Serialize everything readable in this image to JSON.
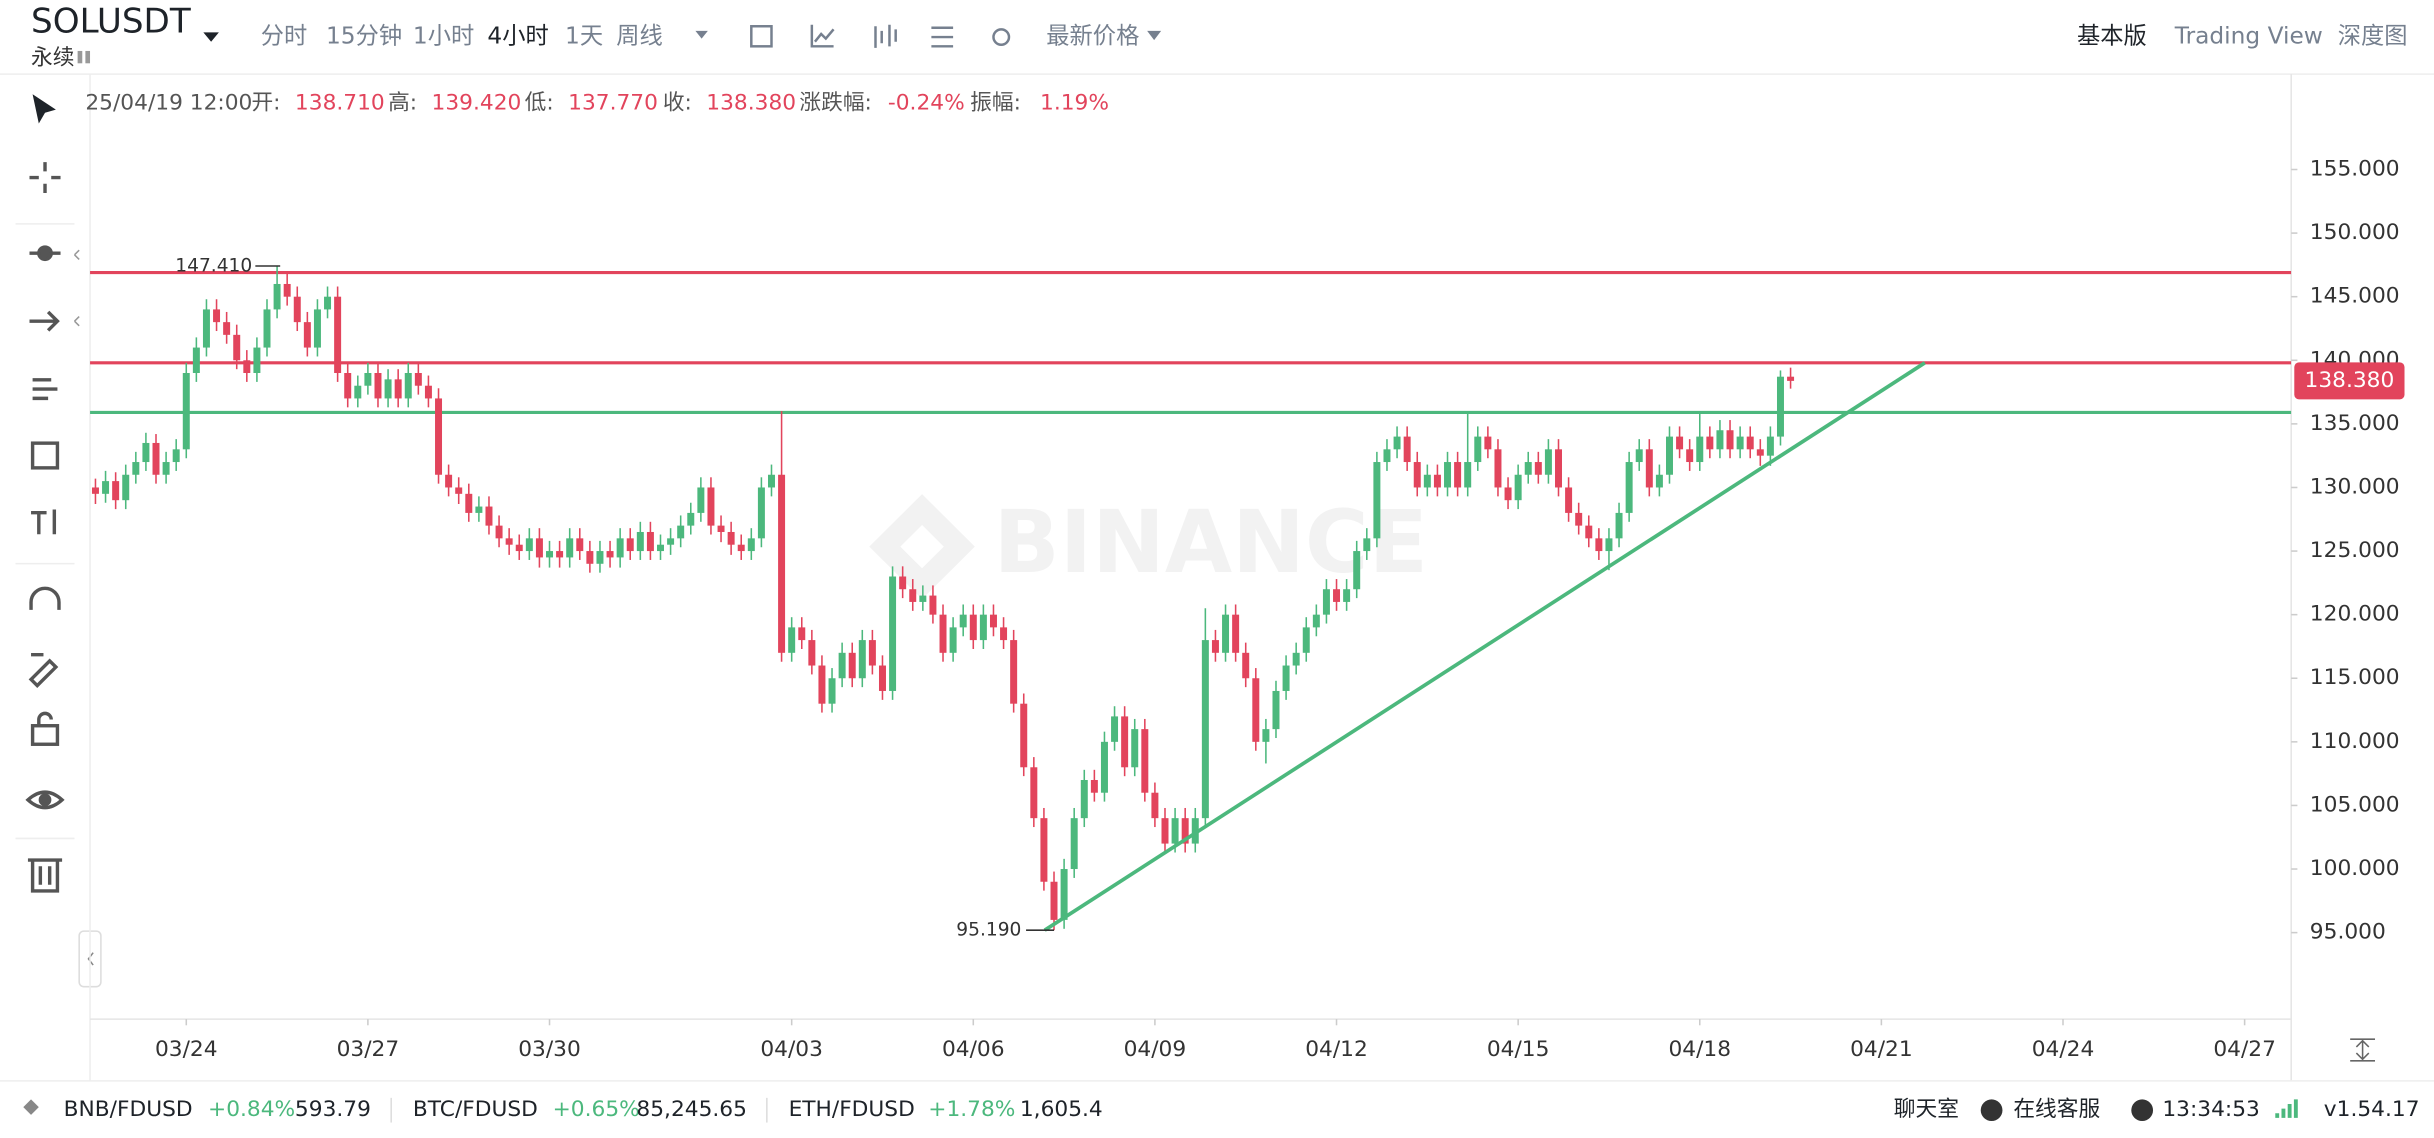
{
  "header": {
    "symbol": "SOLUSDT",
    "contract": "永续",
    "intervals": [
      "分时",
      "15分钟",
      "1小时",
      "4小时",
      "1天",
      "周线"
    ],
    "price_type": "最新价格",
    "views": [
      "基本版",
      "Trading View",
      "深度图"
    ]
  },
  "info_bar": {
    "time": "25/04/19 12:00",
    "items": [
      {
        "label": "开:",
        "value": "138.710"
      },
      {
        "label": "高:",
        "value": "139.420"
      },
      {
        "label": "低:",
        "value": "137.770"
      },
      {
        "label": "收:",
        "value": "138.380"
      },
      {
        "label": "涨跌幅:",
        "value": "-0.24%"
      },
      {
        "label": "振幅:",
        "value": "1.19%"
      }
    ]
  },
  "chart_data": {
    "type": "candlestick",
    "up_color": "#4cb87d",
    "down_color": "#e2445c",
    "ylim": [
      88.2,
      162.5
    ],
    "yticks": [
      {
        "value": 95,
        "label": "95.000"
      },
      {
        "value": 100,
        "label": "100.000"
      },
      {
        "value": 105,
        "label": "105.000"
      },
      {
        "value": 110,
        "label": "110.000"
      },
      {
        "value": 115,
        "label": "115.000"
      },
      {
        "value": 120,
        "label": "120.000"
      },
      {
        "value": 125,
        "label": "125.000"
      },
      {
        "value": 130,
        "label": "130.000"
      },
      {
        "value": 135,
        "label": "135.000"
      },
      {
        "value": 140,
        "label": "140.000"
      },
      {
        "value": 145,
        "label": "145.000"
      },
      {
        "value": 150,
        "label": "150.000"
      },
      {
        "value": 155,
        "label": "155.000"
      }
    ],
    "xticks": [
      "03/24",
      "03/27",
      "03/30",
      "04/03",
      "04/06",
      "04/09",
      "04/12",
      "04/15",
      "04/18",
      "04/21",
      "04/24",
      "04/27"
    ],
    "price_lines": [
      {
        "price": 146.9,
        "color": "#e2445c"
      },
      {
        "price": 139.8,
        "color": "#e2445c"
      },
      {
        "price": 135.9,
        "color": "#4cb87d"
      }
    ],
    "trendline": {
      "from_price": 95.19,
      "to_price": 139.8,
      "color": "#4cb87d"
    },
    "high_marker": {
      "value": 147.41,
      "label": "147.410"
    },
    "low_marker": {
      "value": 95.19,
      "label": "95.190"
    },
    "last_price": {
      "value": 138.38,
      "label": "138.380",
      "color": "#e2445c"
    },
    "watermark": "BINANCE",
    "ohlc": [
      [
        130.5,
        131.2,
        129.3,
        130
      ],
      [
        130,
        130.7,
        128.7,
        129.5
      ],
      [
        129.5,
        131.3,
        128.8,
        130.5
      ],
      [
        130.5,
        131.2,
        128.3,
        129
      ],
      [
        129,
        131.8,
        128.3,
        131
      ],
      [
        131,
        132.8,
        130.3,
        132
      ],
      [
        132,
        134.3,
        131.3,
        133.5
      ],
      [
        133.5,
        134.2,
        130.3,
        131
      ],
      [
        131,
        132.8,
        130.3,
        132
      ],
      [
        132,
        133.8,
        131.3,
        133
      ],
      [
        133,
        139.8,
        132.3,
        139
      ],
      [
        139,
        141.8,
        138.3,
        141
      ],
      [
        141,
        144.8,
        140.3,
        144
      ],
      [
        144,
        144.8,
        142.3,
        143
      ],
      [
        143,
        143.8,
        141.3,
        142
      ],
      [
        142,
        142.8,
        139.3,
        140
      ],
      [
        140,
        140.8,
        138.3,
        139
      ],
      [
        139,
        141.8,
        138.3,
        141
      ],
      [
        141,
        144.8,
        140.3,
        144
      ],
      [
        144,
        147.41,
        143.3,
        146
      ],
      [
        146,
        146.8,
        144.3,
        145
      ],
      [
        145,
        145.8,
        142.3,
        143
      ],
      [
        143,
        143.8,
        140.3,
        141
      ],
      [
        141,
        144.8,
        140.3,
        144
      ],
      [
        144,
        145.8,
        143.3,
        145
      ],
      [
        145,
        145.8,
        138.3,
        139
      ],
      [
        139,
        139.8,
        136.3,
        137
      ],
      [
        137,
        138.8,
        136.3,
        138
      ],
      [
        138,
        139.8,
        137.3,
        139
      ],
      [
        139,
        139.8,
        136.3,
        137
      ],
      [
        137,
        139.3,
        136.3,
        138.5
      ],
      [
        138.5,
        139.3,
        136.3,
        137
      ],
      [
        137,
        139.8,
        136.3,
        139
      ],
      [
        139,
        139.8,
        137.3,
        138
      ],
      [
        138,
        138.8,
        136.3,
        137
      ],
      [
        137,
        137.8,
        130.3,
        131
      ],
      [
        131,
        131.8,
        129.3,
        130
      ],
      [
        130,
        130.8,
        128.7,
        129.5
      ],
      [
        129.5,
        130.3,
        127.3,
        128
      ],
      [
        128,
        129.3,
        127.3,
        128.5
      ],
      [
        128.5,
        129.3,
        126.3,
        127
      ],
      [
        127,
        127.8,
        125.3,
        126
      ],
      [
        126,
        126.8,
        124.7,
        125.5
      ],
      [
        125.5,
        126.3,
        124.3,
        125
      ],
      [
        125,
        126.8,
        124.3,
        126
      ],
      [
        126,
        126.8,
        123.7,
        124.5
      ],
      [
        124.5,
        125.8,
        123.7,
        125
      ],
      [
        125,
        125.8,
        123.7,
        124.5
      ],
      [
        124.5,
        126.8,
        123.7,
        126
      ],
      [
        126,
        126.8,
        124.3,
        125
      ],
      [
        125,
        125.8,
        123.3,
        124
      ],
      [
        124,
        125.8,
        123.3,
        125
      ],
      [
        125,
        125.8,
        123.7,
        124.5
      ],
      [
        124.5,
        126.8,
        123.7,
        126
      ],
      [
        126,
        126.8,
        124.3,
        125
      ],
      [
        125,
        127.3,
        124.3,
        126.5
      ],
      [
        126.5,
        127.3,
        124.3,
        125
      ],
      [
        125,
        126.3,
        124.3,
        125.5
      ],
      [
        125.5,
        126.8,
        124.7,
        126
      ],
      [
        126,
        127.8,
        125.3,
        127
      ],
      [
        127,
        128.8,
        126.3,
        128
      ],
      [
        128,
        130.8,
        127.3,
        130
      ],
      [
        130,
        130.8,
        126.3,
        127
      ],
      [
        127,
        127.8,
        125.7,
        126.5
      ],
      [
        126.5,
        127.3,
        124.7,
        125.5
      ],
      [
        125.5,
        126.3,
        124.3,
        125
      ],
      [
        125,
        126.8,
        124.3,
        126
      ],
      [
        126,
        130.8,
        125.3,
        130
      ],
      [
        130,
        131.8,
        129.3,
        131
      ],
      [
        131,
        136,
        116.3,
        117
      ],
      [
        117,
        119.8,
        116.3,
        119
      ],
      [
        119,
        119.8,
        117.3,
        118
      ],
      [
        118,
        118.8,
        115.3,
        116
      ],
      [
        116,
        116.8,
        112.3,
        113
      ],
      [
        113,
        115.8,
        112.3,
        115
      ],
      [
        115,
        117.8,
        114.3,
        117
      ],
      [
        117,
        117.8,
        114.3,
        115
      ],
      [
        115,
        118.8,
        114.3,
        118
      ],
      [
        118,
        118.8,
        115.3,
        116
      ],
      [
        116,
        116.8,
        113.3,
        114
      ],
      [
        114,
        123.8,
        113.3,
        123
      ],
      [
        123,
        123.8,
        121.3,
        122
      ],
      [
        122,
        122.8,
        120.3,
        121
      ],
      [
        121,
        122.3,
        120.3,
        121.5
      ],
      [
        121.5,
        122.3,
        119.3,
        120
      ],
      [
        120,
        120.8,
        116.3,
        117
      ],
      [
        117,
        119.8,
        116.3,
        119
      ],
      [
        119,
        120.8,
        118.3,
        120
      ],
      [
        120,
        120.8,
        117.3,
        118
      ],
      [
        118,
        120.8,
        117.3,
        120
      ],
      [
        120,
        120.8,
        118.3,
        119
      ],
      [
        119,
        119.8,
        117.3,
        118
      ],
      [
        118,
        118.8,
        112.3,
        113
      ],
      [
        113,
        113.8,
        107.3,
        108
      ],
      [
        108,
        108.8,
        103.3,
        104
      ],
      [
        104,
        104.8,
        98.3,
        99
      ],
      [
        99,
        99.8,
        95.19,
        96
      ],
      [
        96,
        100.8,
        95.3,
        100
      ],
      [
        100,
        104.8,
        99.3,
        104
      ],
      [
        104,
        107.8,
        103.3,
        107
      ],
      [
        107,
        107.8,
        105.3,
        106
      ],
      [
        106,
        110.8,
        105.3,
        110
      ],
      [
        110,
        112.8,
        109.3,
        112
      ],
      [
        112,
        112.8,
        107.3,
        108
      ],
      [
        108,
        111.8,
        107.3,
        111
      ],
      [
        111,
        111.8,
        105.3,
        106
      ],
      [
        106,
        106.8,
        103.3,
        104
      ],
      [
        104,
        104.8,
        101.3,
        102
      ],
      [
        102,
        104.8,
        101.3,
        104
      ],
      [
        104,
        104.8,
        101.3,
        102
      ],
      [
        102,
        104.8,
        101.3,
        104
      ],
      [
        104,
        120.5,
        103.3,
        118
      ],
      [
        118,
        118.8,
        116.3,
        117
      ],
      [
        117,
        120.8,
        116.3,
        120
      ],
      [
        120,
        120.8,
        116.3,
        117
      ],
      [
        117,
        117.8,
        114.3,
        115
      ],
      [
        115,
        115.8,
        109.3,
        110
      ],
      [
        110,
        111.8,
        108.3,
        111
      ],
      [
        111,
        114.8,
        110.3,
        114
      ],
      [
        114,
        116.8,
        113.3,
        116
      ],
      [
        116,
        117.8,
        115.3,
        117
      ],
      [
        117,
        119.8,
        116.3,
        119
      ],
      [
        119,
        120.8,
        118.3,
        120
      ],
      [
        120,
        122.8,
        119.3,
        122
      ],
      [
        122,
        122.8,
        120.3,
        121
      ],
      [
        121,
        122.8,
        120.3,
        122
      ],
      [
        122,
        125.8,
        121.3,
        125
      ],
      [
        125,
        126.8,
        124.3,
        126
      ],
      [
        126,
        132.8,
        125.3,
        132
      ],
      [
        132,
        133.8,
        131.3,
        133
      ],
      [
        133,
        134.8,
        132.3,
        134
      ],
      [
        134,
        134.8,
        131.3,
        132
      ],
      [
        132,
        132.8,
        129.3,
        130
      ],
      [
        130,
        131.8,
        129.3,
        131
      ],
      [
        131,
        131.8,
        129.3,
        130
      ],
      [
        130,
        132.8,
        129.3,
        132
      ],
      [
        132,
        132.8,
        129.3,
        130
      ],
      [
        130,
        136,
        129.3,
        132
      ],
      [
        132,
        134.8,
        131.3,
        134
      ],
      [
        134,
        134.8,
        132.3,
        133
      ],
      [
        133,
        133.8,
        129.3,
        130
      ],
      [
        130,
        130.8,
        128.3,
        129
      ],
      [
        129,
        131.8,
        128.3,
        131
      ],
      [
        131,
        132.8,
        130.3,
        132
      ],
      [
        132,
        132.8,
        130.3,
        131
      ],
      [
        131,
        133.8,
        130.3,
        133
      ],
      [
        133,
        133.8,
        129.3,
        130
      ],
      [
        130,
        130.8,
        127.3,
        128
      ],
      [
        128,
        128.8,
        126.3,
        127
      ],
      [
        127,
        127.8,
        125.3,
        126
      ],
      [
        126,
        126.8,
        124.3,
        125
      ],
      [
        125,
        126.8,
        123.5,
        126
      ],
      [
        126,
        128.8,
        125.3,
        128
      ],
      [
        128,
        132.8,
        127.3,
        132
      ],
      [
        132,
        133.8,
        131.3,
        133
      ],
      [
        133,
        133.8,
        129.3,
        130
      ],
      [
        130,
        131.8,
        129.3,
        131
      ],
      [
        131,
        134.8,
        130.3,
        134
      ],
      [
        134,
        134.8,
        132.3,
        133
      ],
      [
        133,
        133.8,
        131.3,
        132
      ],
      [
        132,
        136,
        131.3,
        134
      ],
      [
        134,
        134.8,
        132.3,
        133
      ],
      [
        133,
        135.3,
        132.3,
        134.5
      ],
      [
        134.5,
        135.3,
        132.3,
        133
      ],
      [
        133,
        134.8,
        132.3,
        134
      ],
      [
        134,
        134.8,
        132.3,
        133
      ],
      [
        133,
        133.8,
        131.7,
        132.5
      ],
      [
        132.5,
        134.8,
        131.7,
        134
      ],
      [
        134,
        139.2,
        133.3,
        138.71
      ],
      [
        138.71,
        139.42,
        137.77,
        138.38
      ]
    ]
  },
  "footer": {
    "tickers": [
      {
        "pair": "BNB/FDUSD",
        "change": "+0.84%",
        "price": "593.79"
      },
      {
        "pair": "BTC/FDUSD",
        "change": "+0.65%",
        "price": "85,245.65"
      },
      {
        "pair": "ETH/FDUSD",
        "change": "+1.78%",
        "price": "1,605.4"
      }
    ],
    "chat": "聊天室",
    "support": "在线客服",
    "clock": "13:34:53",
    "version": "v1.54.17"
  }
}
